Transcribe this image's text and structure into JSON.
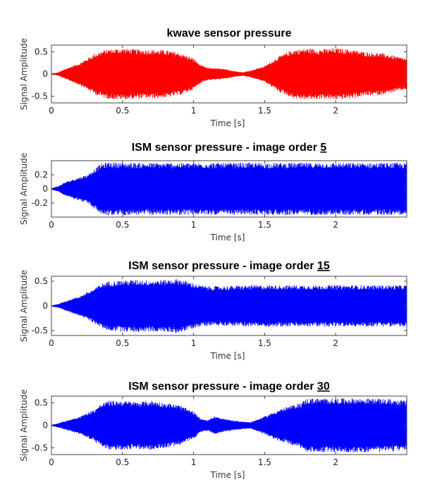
{
  "chart_data": [
    {
      "type": "line",
      "title": "kwave sensor pressure",
      "title_emphasis": "",
      "xlabel": "Time [s]",
      "ylabel": "Signal Amplitude",
      "xlim": [
        0,
        2.5
      ],
      "ylim": [
        -0.65,
        0.65
      ],
      "xticks": [
        "0",
        "0.5",
        "1",
        "1.5",
        "2"
      ],
      "yticks": [
        "0.5",
        "0",
        "-0.5"
      ],
      "series": [
        {
          "color": "#ff0000",
          "envelope": {
            "t": [
              0,
              0.05,
              0.1,
              0.2,
              0.3,
              0.35,
              0.4,
              0.5,
              0.6,
              0.7,
              0.8,
              0.9,
              1.0,
              1.05,
              1.1,
              1.2,
              1.3,
              1.35,
              1.4,
              1.5,
              1.6,
              1.7,
              1.8,
              1.9,
              2.0,
              2.1,
              2.2,
              2.3,
              2.35,
              2.4,
              2.45,
              2.5
            ],
            "amp": [
              0.0,
              0.04,
              0.12,
              0.25,
              0.45,
              0.52,
              0.56,
              0.58,
              0.56,
              0.55,
              0.54,
              0.48,
              0.35,
              0.2,
              0.14,
              0.12,
              0.06,
              0.04,
              0.08,
              0.18,
              0.4,
              0.55,
              0.58,
              0.56,
              0.58,
              0.56,
              0.5,
              0.48,
              0.45,
              0.42,
              0.38,
              0.35
            ]
          }
        }
      ]
    },
    {
      "type": "line",
      "title": "ISM sensor pressure - image order ",
      "title_emphasis": "5",
      "xlabel": "Time [s]",
      "ylabel": "Signal Amplitude",
      "xlim": [
        0,
        2.5
      ],
      "ylim": [
        -0.4,
        0.4
      ],
      "xticks": [
        "0",
        "0.5",
        "1",
        "1.5",
        "2"
      ],
      "yticks": [
        "0.2",
        "0",
        "-0.2"
      ],
      "series": [
        {
          "color": "#0000ff",
          "envelope": {
            "t": [
              0,
              0.05,
              0.1,
              0.2,
              0.25,
              0.3,
              0.35,
              0.4,
              0.6,
              0.8,
              1.0,
              1.5,
              2.0,
              2.5
            ],
            "amp": [
              0.01,
              0.04,
              0.1,
              0.17,
              0.2,
              0.28,
              0.36,
              0.38,
              0.37,
              0.37,
              0.37,
              0.37,
              0.37,
              0.37
            ]
          }
        }
      ]
    },
    {
      "type": "line",
      "title": "ISM sensor pressure - image order ",
      "title_emphasis": "15",
      "xlabel": "Time [s]",
      "ylabel": "Signal Amplitude",
      "xlim": [
        0,
        2.5
      ],
      "ylim": [
        -0.6,
        0.6
      ],
      "xticks": [
        "0",
        "0.5",
        "1",
        "1.5",
        "2"
      ],
      "yticks": [
        "0.5",
        "0",
        "-0.5"
      ],
      "series": [
        {
          "color": "#0000ff",
          "envelope": {
            "t": [
              0,
              0.05,
              0.1,
              0.2,
              0.3,
              0.35,
              0.4,
              0.5,
              0.6,
              0.7,
              0.8,
              0.9,
              0.95,
              1.0,
              1.05,
              1.1,
              1.2,
              1.4,
              1.6,
              1.8,
              2.0,
              2.2,
              2.5
            ],
            "amp": [
              0.01,
              0.04,
              0.1,
              0.2,
              0.35,
              0.45,
              0.5,
              0.52,
              0.53,
              0.52,
              0.53,
              0.55,
              0.5,
              0.46,
              0.42,
              0.4,
              0.4,
              0.42,
              0.42,
              0.42,
              0.42,
              0.42,
              0.42
            ]
          }
        }
      ]
    },
    {
      "type": "line",
      "title": "ISM sensor pressure - image order ",
      "title_emphasis": "30",
      "xlabel": "Time [s]",
      "ylabel": "Signal Amplitude",
      "xlim": [
        0,
        2.5
      ],
      "ylim": [
        -0.65,
        0.65
      ],
      "xticks": [
        "0",
        "0.5",
        "1",
        "1.5",
        "2"
      ],
      "yticks": [
        "0.5",
        "0",
        "-0.5"
      ],
      "series": [
        {
          "color": "#0000ff",
          "envelope": {
            "t": [
              0,
              0.05,
              0.1,
              0.2,
              0.3,
              0.35,
              0.4,
              0.5,
              0.6,
              0.7,
              0.8,
              0.9,
              1.0,
              1.05,
              1.1,
              1.15,
              1.2,
              1.3,
              1.4,
              1.5,
              1.6,
              1.7,
              1.75,
              1.8,
              2.0,
              2.2,
              2.4,
              2.5
            ],
            "amp": [
              0.01,
              0.05,
              0.1,
              0.2,
              0.35,
              0.48,
              0.55,
              0.55,
              0.52,
              0.55,
              0.5,
              0.45,
              0.3,
              0.15,
              0.12,
              0.2,
              0.15,
              0.1,
              0.07,
              0.2,
              0.35,
              0.45,
              0.5,
              0.6,
              0.6,
              0.6,
              0.58,
              0.55
            ]
          }
        }
      ]
    }
  ]
}
